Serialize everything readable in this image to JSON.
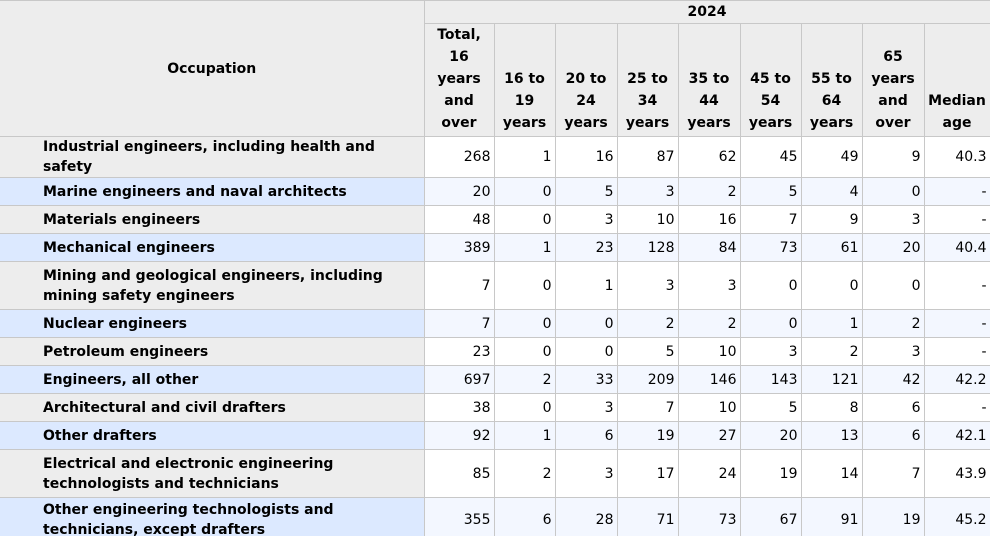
{
  "table": {
    "year": "2024",
    "headers": {
      "occupation": "Occupation",
      "total": [
        "Total,",
        "16",
        "years",
        "and",
        "over"
      ],
      "age_16_19": [
        "16 to",
        "19",
        "years"
      ],
      "age_20_24": [
        "20 to",
        "24",
        "years"
      ],
      "age_25_34": [
        "25 to",
        "34",
        "years"
      ],
      "age_35_44": [
        "35 to",
        "44",
        "years"
      ],
      "age_45_54": [
        "45 to",
        "54",
        "years"
      ],
      "age_55_64": [
        "55 to",
        "64",
        "years"
      ],
      "age_65_over": [
        "65",
        "years",
        "and",
        "over"
      ],
      "median": [
        "Median",
        "age"
      ]
    },
    "rows": [
      {
        "occupation": "Industrial engineers, including health and safety",
        "values": [
          "268",
          "1",
          "16",
          "87",
          "62",
          "45",
          "49",
          "9",
          "40.3"
        ]
      },
      {
        "occupation": "Marine engineers and naval architects",
        "values": [
          "20",
          "0",
          "5",
          "3",
          "2",
          "5",
          "4",
          "0",
          "-"
        ]
      },
      {
        "occupation": "Materials engineers",
        "values": [
          "48",
          "0",
          "3",
          "10",
          "16",
          "7",
          "9",
          "3",
          "-"
        ]
      },
      {
        "occupation": "Mechanical engineers",
        "values": [
          "389",
          "1",
          "23",
          "128",
          "84",
          "73",
          "61",
          "20",
          "40.4"
        ]
      },
      {
        "occupation": "Mining and geological engineers, including mining safety engineers",
        "values": [
          "7",
          "0",
          "1",
          "3",
          "3",
          "0",
          "0",
          "0",
          "-"
        ]
      },
      {
        "occupation": "Nuclear engineers",
        "values": [
          "7",
          "0",
          "0",
          "2",
          "2",
          "0",
          "1",
          "2",
          "-"
        ]
      },
      {
        "occupation": "Petroleum engineers",
        "values": [
          "23",
          "0",
          "0",
          "5",
          "10",
          "3",
          "2",
          "3",
          "-"
        ]
      },
      {
        "occupation": "Engineers, all other",
        "values": [
          "697",
          "2",
          "33",
          "209",
          "146",
          "143",
          "121",
          "42",
          "42.2"
        ]
      },
      {
        "occupation": "Architectural and civil drafters",
        "values": [
          "38",
          "0",
          "3",
          "7",
          "10",
          "5",
          "8",
          "6",
          "-"
        ]
      },
      {
        "occupation": "Other drafters",
        "values": [
          "92",
          "1",
          "6",
          "19",
          "27",
          "20",
          "13",
          "6",
          "42.1"
        ]
      },
      {
        "occupation": "Electrical and electronic engineering technologists and technicians",
        "values": [
          "85",
          "2",
          "3",
          "17",
          "24",
          "19",
          "14",
          "7",
          "43.9"
        ]
      },
      {
        "occupation": "Other engineering technologists and technicians, except drafters",
        "values": [
          "355",
          "6",
          "28",
          "71",
          "73",
          "67",
          "91",
          "19",
          "45.2"
        ]
      }
    ]
  },
  "colors": {
    "header_bg": "#ededed",
    "row_odd_bg": "#ededed",
    "row_even_bg": "#dce9ff",
    "cell_even_bg": "#f3f7ff",
    "border": "#c8c8c8"
  }
}
